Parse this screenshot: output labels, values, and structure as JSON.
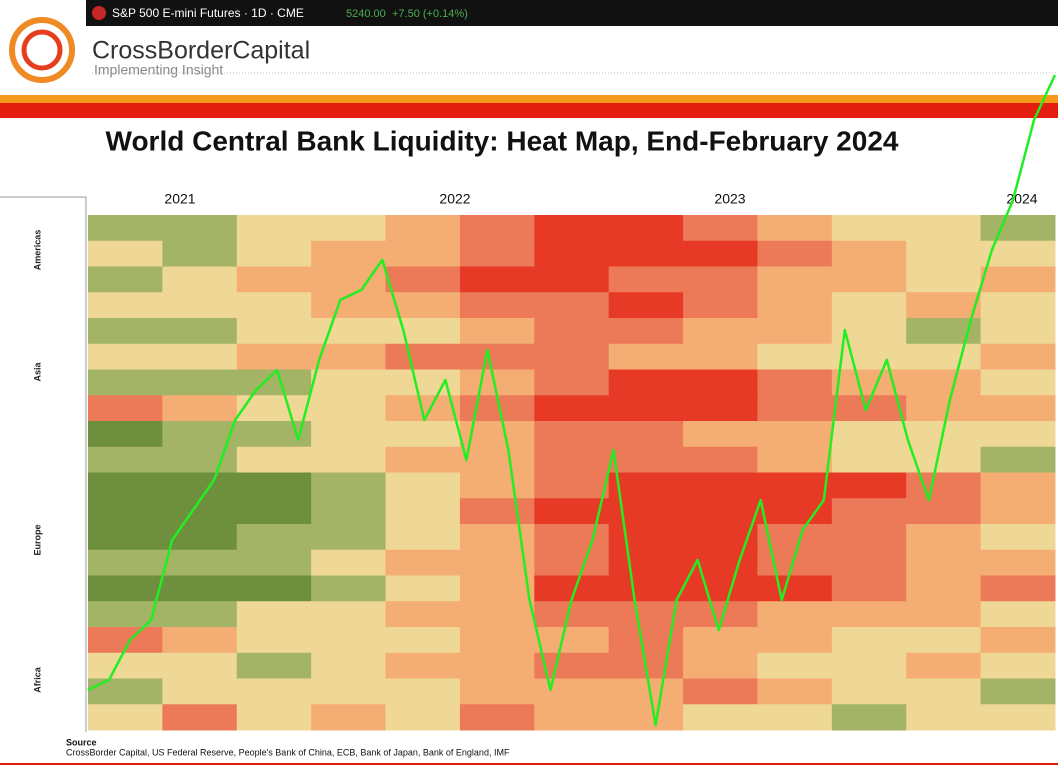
{
  "header": {
    "ticker": "S&P 500 E-mini Futures · 1D · CME",
    "price": "5240.00",
    "change": "+7.50 (+0.14%)",
    "brand": "CrossBorderCapital",
    "tagline": "Implementing Insight"
  },
  "chart_data": [
    {
      "type": "heatmap",
      "title": "World Central Bank Liquidity: Heat Map, End-February 2024",
      "years": [
        "2021",
        "2022",
        "2023",
        "2024"
      ],
      "regions": [
        "Americas",
        "Asia",
        "Europe",
        "Africa"
      ],
      "cells": [
        [
          "#a3b466",
          "#a3b466",
          "#efd796",
          "#efd796",
          "#f4ad72",
          "#ec7a58",
          "#e63a26",
          "#e63a26",
          "#ec7a58",
          "#f4ad72",
          "#efd796",
          "#efd796",
          "#a3b466"
        ],
        [
          "#efd796",
          "#a3b466",
          "#efd796",
          "#f4ad72",
          "#f4ad72",
          "#ec7a58",
          "#e63a26",
          "#e63a26",
          "#e63a26",
          "#ec7a58",
          "#f4ad72",
          "#efd796",
          "#efd796"
        ],
        [
          "#a3b466",
          "#efd796",
          "#f4ad72",
          "#f4ad72",
          "#ec7a58",
          "#e63a26",
          "#e63a26",
          "#ec7a58",
          "#ec7a58",
          "#f4ad72",
          "#f4ad72",
          "#efd796",
          "#f4ad72"
        ],
        [
          "#efd796",
          "#efd796",
          "#efd796",
          "#f4ad72",
          "#f4ad72",
          "#ec7a58",
          "#ec7a58",
          "#e63a26",
          "#ec7a58",
          "#f4ad72",
          "#efd796",
          "#f4ad72",
          "#efd796"
        ],
        [
          "#a3b466",
          "#a3b466",
          "#efd796",
          "#efd796",
          "#efd796",
          "#f4ad72",
          "#ec7a58",
          "#ec7a58",
          "#f4ad72",
          "#f4ad72",
          "#efd796",
          "#a3b466",
          "#efd796"
        ],
        [
          "#efd796",
          "#efd796",
          "#f4ad72",
          "#f4ad72",
          "#ec7a58",
          "#ec7a58",
          "#ec7a58",
          "#f4ad72",
          "#f4ad72",
          "#efd796",
          "#efd796",
          "#efd796",
          "#f4ad72"
        ],
        [
          "#a3b466",
          "#a3b466",
          "#a3b466",
          "#efd796",
          "#efd796",
          "#f4ad72",
          "#ec7a58",
          "#e63a26",
          "#e63a26",
          "#ec7a58",
          "#f4ad72",
          "#f4ad72",
          "#efd796"
        ],
        [
          "#ec7a58",
          "#f4ad72",
          "#efd796",
          "#efd796",
          "#f4ad72",
          "#ec7a58",
          "#e63a26",
          "#e63a26",
          "#e63a26",
          "#ec7a58",
          "#ec7a58",
          "#f4ad72",
          "#f4ad72"
        ],
        [
          "#6e8f3e",
          "#a3b466",
          "#a3b466",
          "#efd796",
          "#efd796",
          "#f4ad72",
          "#ec7a58",
          "#ec7a58",
          "#f4ad72",
          "#f4ad72",
          "#efd796",
          "#efd796",
          "#efd796"
        ],
        [
          "#a3b466",
          "#a3b466",
          "#efd796",
          "#efd796",
          "#f4ad72",
          "#f4ad72",
          "#ec7a58",
          "#ec7a58",
          "#ec7a58",
          "#f4ad72",
          "#efd796",
          "#efd796",
          "#a3b466"
        ],
        [
          "#6e8f3e",
          "#6e8f3e",
          "#6e8f3e",
          "#a3b466",
          "#efd796",
          "#f4ad72",
          "#ec7a58",
          "#e63a26",
          "#e63a26",
          "#e63a26",
          "#e63a26",
          "#ec7a58",
          "#f4ad72"
        ],
        [
          "#6e8f3e",
          "#6e8f3e",
          "#6e8f3e",
          "#a3b466",
          "#efd796",
          "#ec7a58",
          "#e63a26",
          "#e63a26",
          "#e63a26",
          "#e63a26",
          "#ec7a58",
          "#ec7a58",
          "#f4ad72"
        ],
        [
          "#6e8f3e",
          "#6e8f3e",
          "#a3b466",
          "#a3b466",
          "#efd796",
          "#f4ad72",
          "#ec7a58",
          "#e63a26",
          "#e63a26",
          "#ec7a58",
          "#ec7a58",
          "#f4ad72",
          "#efd796"
        ],
        [
          "#a3b466",
          "#a3b466",
          "#a3b466",
          "#efd796",
          "#f4ad72",
          "#f4ad72",
          "#ec7a58",
          "#e63a26",
          "#e63a26",
          "#ec7a58",
          "#ec7a58",
          "#f4ad72",
          "#f4ad72"
        ],
        [
          "#6e8f3e",
          "#6e8f3e",
          "#6e8f3e",
          "#a3b466",
          "#efd796",
          "#f4ad72",
          "#e63a26",
          "#e63a26",
          "#e63a26",
          "#e63a26",
          "#ec7a58",
          "#f4ad72",
          "#ec7a58"
        ],
        [
          "#a3b466",
          "#a3b466",
          "#efd796",
          "#efd796",
          "#f4ad72",
          "#f4ad72",
          "#ec7a58",
          "#ec7a58",
          "#ec7a58",
          "#f4ad72",
          "#f4ad72",
          "#f4ad72",
          "#efd796"
        ],
        [
          "#ec7a58",
          "#f4ad72",
          "#efd796",
          "#efd796",
          "#efd796",
          "#f4ad72",
          "#f4ad72",
          "#ec7a58",
          "#f4ad72",
          "#f4ad72",
          "#efd796",
          "#efd796",
          "#f4ad72"
        ],
        [
          "#efd796",
          "#efd796",
          "#a3b466",
          "#efd796",
          "#f4ad72",
          "#f4ad72",
          "#ec7a58",
          "#ec7a58",
          "#f4ad72",
          "#efd796",
          "#efd796",
          "#f4ad72",
          "#efd796"
        ],
        [
          "#a3b466",
          "#efd796",
          "#efd796",
          "#efd796",
          "#efd796",
          "#f4ad72",
          "#f4ad72",
          "#f4ad72",
          "#ec7a58",
          "#f4ad72",
          "#efd796",
          "#efd796",
          "#a3b466"
        ],
        [
          "#efd796",
          "#ec7a58",
          "#efd796",
          "#f4ad72",
          "#efd796",
          "#ec7a58",
          "#f4ad72",
          "#f4ad72",
          "#efd796",
          "#efd796",
          "#a3b466",
          "#efd796",
          "#efd796"
        ]
      ]
    },
    {
      "type": "line",
      "series": [
        {
          "name": "S&P 500 E-mini Futures · 1D · CME",
          "color": "#22ee22",
          "values": [
            3672,
            3698,
            3803,
            3855,
            4065,
            4144,
            4223,
            4380,
            4459,
            4511,
            4328,
            4538,
            4695,
            4721,
            4800,
            4616,
            4380,
            4485,
            4275,
            4564,
            4301,
            3908,
            3672,
            3908,
            4065,
            4301,
            3908,
            3580,
            3908,
            4013,
            3829,
            4013,
            4170,
            3908,
            4092,
            4170,
            4616,
            4406,
            4538,
            4328,
            4170,
            4433,
            4643,
            4826,
            4957,
            5167,
            5285
          ]
        }
      ]
    }
  ],
  "footer": {
    "source_title": "Source",
    "source": "CrossBorder Capital, US Federal Reserve, People's Bank of China, ECB, Bank of Japan, Bank of England, IMF"
  }
}
